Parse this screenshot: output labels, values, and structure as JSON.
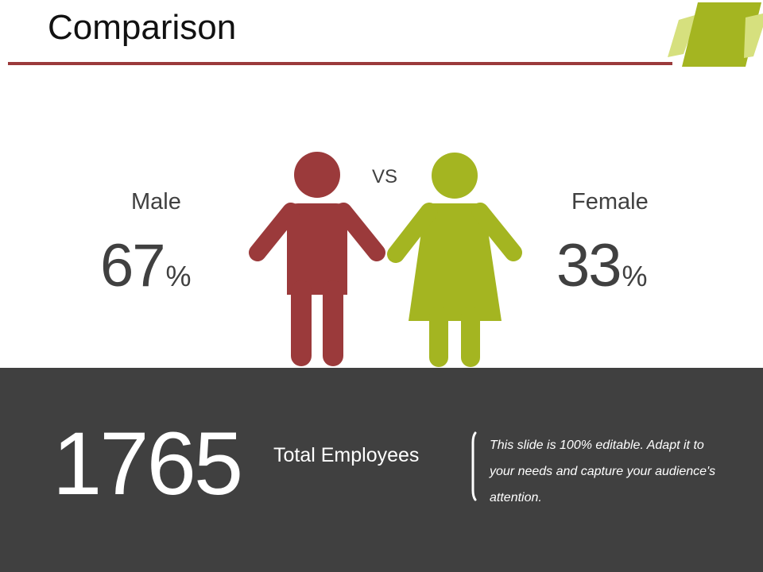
{
  "slide": {
    "title": "Comparison"
  },
  "comparison": {
    "vs_label": "VS",
    "male": {
      "label": "Male",
      "value": "67",
      "unit": "%"
    },
    "female": {
      "label": "Female",
      "value": "33",
      "unit": "%"
    }
  },
  "summary": {
    "total_value": "1765",
    "total_label": "Total Employees",
    "note": "This slide is 100% editable. Adapt it to your needs and capture your audience's attention."
  },
  "colors": {
    "male": "#9b3a3b",
    "female": "#a4b521",
    "panel": "#404040",
    "accent": "#a4b521"
  },
  "icons": {
    "male": "male-figure-icon",
    "female": "female-figure-icon",
    "corner": "parallelogram-decoration"
  }
}
